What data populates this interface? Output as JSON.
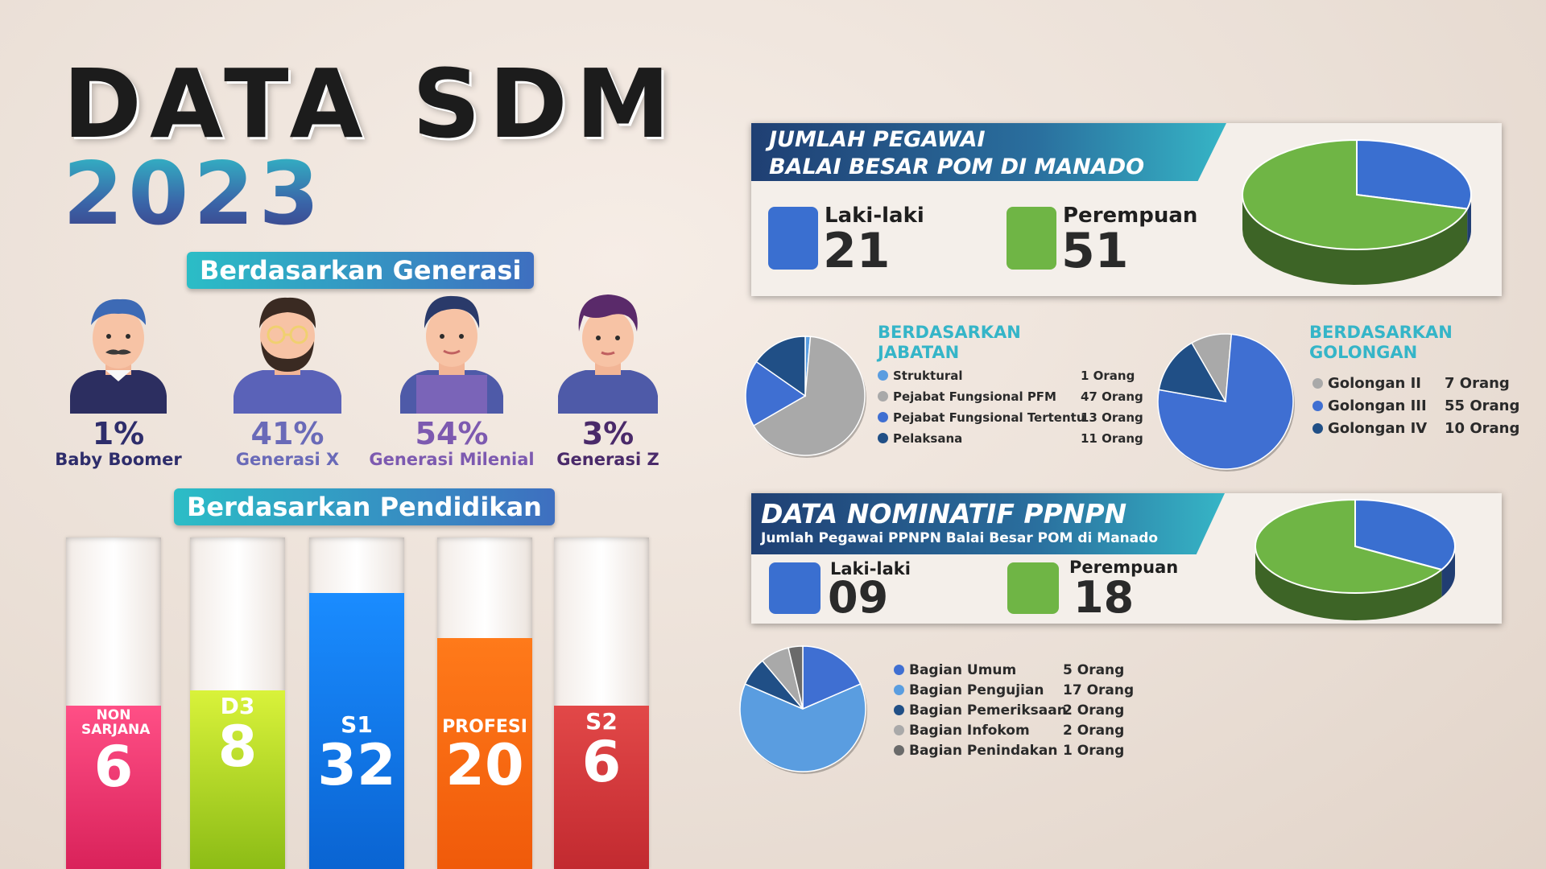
{
  "title": {
    "line1": "DATA SDM",
    "line2": "2023"
  },
  "generasi": {
    "heading": "Berdasarkan Generasi",
    "items": [
      {
        "pct": "1%",
        "label": "Baby Boomer",
        "color": "#2e2d6b"
      },
      {
        "pct": "41%",
        "label": "Generasi X",
        "color": "#6a6ab8"
      },
      {
        "pct": "54%",
        "label": "Generasi Milenial",
        "color": "#7d5ab0"
      },
      {
        "pct": "3%",
        "label": "Generasi Z",
        "color": "#4a2a6a"
      }
    ]
  },
  "pendidikan": {
    "heading": "Berdasarkan Pendidikan",
    "items": [
      {
        "name": "NON SARJANA",
        "value": "6",
        "color": "#e8336e"
      },
      {
        "name": "D3",
        "value": "8",
        "color": "#a8d41f"
      },
      {
        "name": "S1",
        "value": "32",
        "color": "#1478e6"
      },
      {
        "name": "PROFESI",
        "value": "20",
        "color": "#ff6a12"
      },
      {
        "name": "S2",
        "value": "6",
        "color": "#d8343b"
      }
    ]
  },
  "pegawai": {
    "title1": "JUMLAH PEGAWAI",
    "title2": "BALAI BESAR POM DI MANADO",
    "male_label": "Laki-laki",
    "male_value": "21",
    "female_label": "Perempuan",
    "female_value": "51",
    "male_color": "#3a6fd0",
    "female_color": "#6fb545"
  },
  "jabatan": {
    "heading1": "BERDASARKAN",
    "heading2": "JABATAN",
    "items": [
      {
        "label": "Struktural",
        "value": "1",
        "unit": "Orang",
        "color": "#5a9de0"
      },
      {
        "label": "Pejabat Fungsional PFM",
        "value": "47",
        "unit": "Orang",
        "color": "#a9a9a9"
      },
      {
        "label": "Pejabat Fungsional Tertentu",
        "value": "13",
        "unit": "Orang",
        "color": "#3f6fd2"
      },
      {
        "label": "Pelaksana",
        "value": "11",
        "unit": "Orang",
        "color": "#204f86"
      }
    ]
  },
  "golongan": {
    "heading1": "BERDASARKAN",
    "heading2": "GOLONGAN",
    "items": [
      {
        "label": "Golongan II",
        "value": "7",
        "unit": "Orang",
        "color": "#a9a9a9"
      },
      {
        "label": "Golongan III",
        "value": "55",
        "unit": "Orang",
        "color": "#3f6fd2"
      },
      {
        "label": "Golongan IV",
        "value": "10",
        "unit": "Orang",
        "color": "#204f86"
      }
    ]
  },
  "ppnpn": {
    "title": "DATA NOMINATIF PPNPN",
    "subtitle": "Jumlah Pegawai PPNPN Balai Besar POM di Manado",
    "male_label": "Laki-laki",
    "male_value": "09",
    "female_label": "Perempuan",
    "female_value": "18",
    "male_color": "#3a6fd0",
    "female_color": "#6fb545"
  },
  "bagian": {
    "items": [
      {
        "label": "Bagian Umum",
        "value": "5 Orang",
        "color": "#3f6fd2"
      },
      {
        "label": "Bagian Pengujian",
        "value": "17 Orang",
        "color": "#5a9de0"
      },
      {
        "label": "Bagian Pemeriksaan",
        "value": "2 Orang",
        "color": "#204f86"
      },
      {
        "label": "Bagian Infokom",
        "value": "2 Orang",
        "color": "#a9a9a9"
      },
      {
        "label": "Bagian Penindakan",
        "value": "1 Orang",
        "color": "#6a6a6a"
      }
    ]
  },
  "chart_data": [
    {
      "type": "bar",
      "categories": [
        "NON SARJANA",
        "D3",
        "S1",
        "PROFESI",
        "S2"
      ],
      "values": [
        6,
        8,
        32,
        20,
        6
      ]
    },
    {
      "type": "pie",
      "categories": [
        "Laki-laki",
        "Perempuan"
      ],
      "values": [
        21,
        51
      ]
    },
    {
      "type": "pie",
      "categories": [
        "Struktural",
        "Pejabat Fungsional PFM",
        "Pejabat Fungsional Tertentu",
        "Pelaksana"
      ],
      "values": [
        1,
        47,
        13,
        11
      ]
    },
    {
      "type": "pie",
      "categories": [
        "Golongan II",
        "Golongan III",
        "Golongan IV"
      ],
      "values": [
        7,
        55,
        10
      ]
    },
    {
      "type": "pie",
      "categories": [
        "Laki-laki",
        "Perempuan"
      ],
      "values": [
        9,
        18
      ]
    },
    {
      "type": "pie",
      "categories": [
        "Bagian Umum",
        "Bagian Pengujian",
        "Bagian Pemeriksaan",
        "Bagian Infokom",
        "Bagian Penindakan"
      ],
      "values": [
        5,
        17,
        2,
        2,
        1
      ]
    }
  ]
}
